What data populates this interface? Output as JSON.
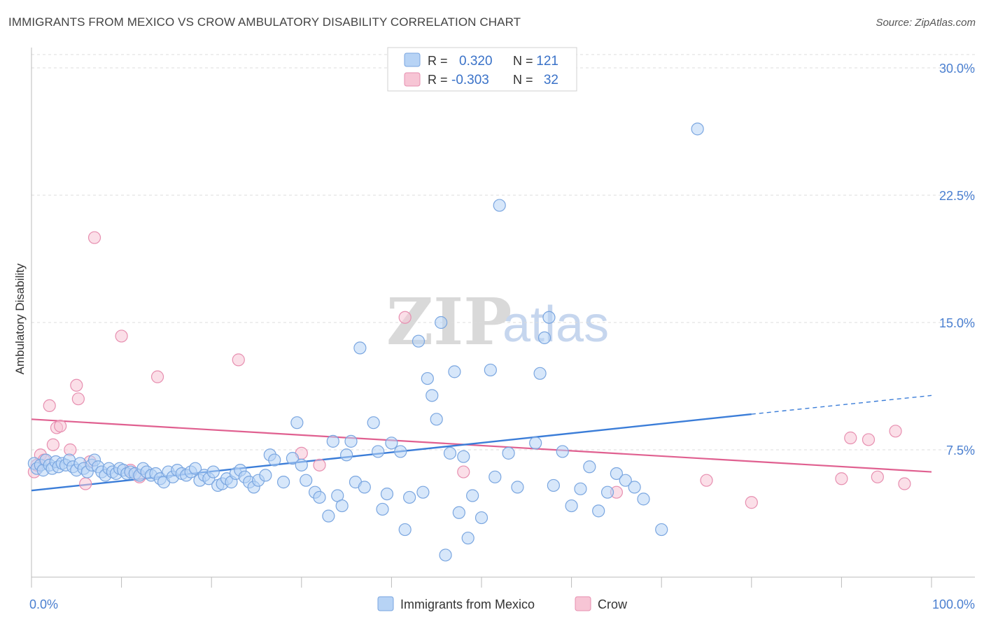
{
  "title": "IMMIGRANTS FROM MEXICO VS CROW AMBULATORY DISABILITY CORRELATION CHART",
  "source": "Source: ZipAtlas.com",
  "watermark": {
    "zip": "ZIP",
    "atlas": "atlas"
  },
  "colors": {
    "blue_fill": "#b7d3f5",
    "blue_stroke": "#7aa6e0",
    "blue_line": "#3b7dd8",
    "pink_fill": "#f7c5d5",
    "pink_stroke": "#e78fb0",
    "pink_line": "#e06090",
    "grid": "#dcdcdc",
    "tick_text": "#4a7fd0"
  },
  "legend_top": {
    "rows": [
      {
        "r_label": "R =",
        "r_value": "0.320",
        "n_label": "N =",
        "n_value": "121"
      },
      {
        "r_label": "R =",
        "r_value": "-0.303",
        "n_label": "N =",
        "n_value": "32"
      }
    ]
  },
  "chart_data": {
    "type": "scatter",
    "title": "IMMIGRANTS FROM MEXICO VS CROW AMBULATORY DISABILITY CORRELATION CHART",
    "xlabel": "",
    "ylabel": "Ambulatory Disability",
    "xlim": [
      0,
      100
    ],
    "ylim": [
      0,
      30
    ],
    "x_tick_labels": [
      "0.0%",
      "100.0%"
    ],
    "y_ticks": [
      7.5,
      15.0,
      22.5,
      30.0
    ],
    "y_tick_labels": [
      "7.5%",
      "15.0%",
      "22.5%",
      "30.0%"
    ],
    "grid": true,
    "legend_position": "bottom",
    "series": [
      {
        "name": "Immigrants from Mexico",
        "points": [
          [
            0.3,
            6.7
          ],
          [
            0.6,
            6.4
          ],
          [
            1.0,
            6.6
          ],
          [
            1.3,
            6.3
          ],
          [
            1.6,
            6.9
          ],
          [
            2.0,
            6.6
          ],
          [
            2.3,
            6.4
          ],
          [
            2.7,
            6.8
          ],
          [
            3.0,
            6.5
          ],
          [
            3.4,
            6.7
          ],
          [
            3.8,
            6.6
          ],
          [
            4.2,
            6.9
          ],
          [
            4.6,
            6.5
          ],
          [
            5.0,
            6.3
          ],
          [
            5.4,
            6.7
          ],
          [
            5.8,
            6.4
          ],
          [
            6.2,
            6.2
          ],
          [
            6.7,
            6.6
          ],
          [
            7.0,
            6.9
          ],
          [
            7.4,
            6.5
          ],
          [
            7.8,
            6.2
          ],
          [
            8.2,
            6.0
          ],
          [
            8.6,
            6.4
          ],
          [
            9.0,
            6.2
          ],
          [
            9.4,
            6.1
          ],
          [
            9.8,
            6.4
          ],
          [
            10.2,
            6.3
          ],
          [
            10.6,
            6.1
          ],
          [
            11.0,
            6.2
          ],
          [
            11.5,
            6.1
          ],
          [
            12.0,
            6.0
          ],
          [
            12.4,
            6.4
          ],
          [
            12.8,
            6.2
          ],
          [
            13.3,
            6.0
          ],
          [
            13.8,
            6.1
          ],
          [
            14.3,
            5.8
          ],
          [
            14.7,
            5.6
          ],
          [
            15.2,
            6.2
          ],
          [
            15.7,
            5.9
          ],
          [
            16.2,
            6.3
          ],
          [
            16.7,
            6.1
          ],
          [
            17.2,
            6.0
          ],
          [
            17.7,
            6.2
          ],
          [
            18.2,
            6.4
          ],
          [
            18.7,
            5.7
          ],
          [
            19.2,
            6.0
          ],
          [
            19.7,
            5.8
          ],
          [
            20.2,
            6.2
          ],
          [
            20.7,
            5.4
          ],
          [
            21.2,
            5.5
          ],
          [
            21.7,
            5.8
          ],
          [
            22.2,
            5.6
          ],
          [
            22.7,
            6.1
          ],
          [
            23.2,
            6.3
          ],
          [
            23.7,
            5.9
          ],
          [
            24.2,
            5.6
          ],
          [
            24.7,
            5.3
          ],
          [
            25.2,
            5.7
          ],
          [
            26.0,
            6.0
          ],
          [
            26.5,
            7.2
          ],
          [
            27.0,
            6.9
          ],
          [
            28.0,
            5.6
          ],
          [
            29.0,
            7.0
          ],
          [
            29.5,
            9.1
          ],
          [
            30.0,
            6.6
          ],
          [
            30.5,
            5.7
          ],
          [
            31.5,
            5.0
          ],
          [
            32.0,
            4.7
          ],
          [
            33.0,
            3.6
          ],
          [
            33.5,
            8.0
          ],
          [
            34.0,
            4.8
          ],
          [
            34.5,
            4.2
          ],
          [
            35.0,
            7.2
          ],
          [
            35.5,
            8.0
          ],
          [
            36.0,
            5.6
          ],
          [
            36.5,
            13.5
          ],
          [
            37.0,
            5.3
          ],
          [
            38.0,
            9.1
          ],
          [
            38.5,
            7.4
          ],
          [
            39.0,
            4.0
          ],
          [
            39.5,
            4.9
          ],
          [
            40.0,
            7.9
          ],
          [
            41.0,
            7.4
          ],
          [
            41.5,
            2.8
          ],
          [
            42.0,
            4.7
          ],
          [
            43.0,
            13.9
          ],
          [
            43.5,
            5.0
          ],
          [
            44.0,
            11.7
          ],
          [
            44.5,
            10.7
          ],
          [
            45.0,
            9.3
          ],
          [
            45.5,
            15.0
          ],
          [
            46.0,
            1.3
          ],
          [
            46.5,
            7.3
          ],
          [
            47.0,
            12.1
          ],
          [
            47.5,
            3.8
          ],
          [
            48.0,
            7.1
          ],
          [
            48.5,
            2.3
          ],
          [
            49.0,
            4.8
          ],
          [
            50.0,
            3.5
          ],
          [
            51.0,
            12.2
          ],
          [
            51.5,
            5.9
          ],
          [
            52.0,
            21.9
          ],
          [
            53.0,
            7.3
          ],
          [
            54.0,
            5.3
          ],
          [
            56.0,
            7.9
          ],
          [
            56.5,
            12.0
          ],
          [
            57.0,
            14.1
          ],
          [
            57.5,
            15.3
          ],
          [
            58.0,
            5.4
          ],
          [
            59.0,
            7.4
          ],
          [
            60.0,
            4.2
          ],
          [
            61.0,
            5.2
          ],
          [
            62.0,
            6.5
          ],
          [
            63.0,
            3.9
          ],
          [
            64.0,
            5.0
          ],
          [
            65.0,
            6.1
          ],
          [
            66.0,
            5.7
          ],
          [
            67.0,
            5.3
          ],
          [
            68.0,
            4.6
          ],
          [
            70.0,
            2.8
          ],
          [
            74.0,
            26.4
          ]
        ],
        "trend": {
          "x0": 0,
          "y0": 5.1,
          "x1": 80,
          "y1": 9.6,
          "dashed_to_x": 100,
          "dashed_to_y": 10.7
        }
      },
      {
        "name": "Crow",
        "points": [
          [
            0.3,
            6.2
          ],
          [
            0.6,
            6.6
          ],
          [
            1.0,
            7.2
          ],
          [
            1.4,
            6.9
          ],
          [
            2.0,
            10.1
          ],
          [
            2.4,
            7.8
          ],
          [
            2.8,
            8.8
          ],
          [
            3.2,
            8.9
          ],
          [
            4.3,
            7.5
          ],
          [
            5.0,
            11.3
          ],
          [
            5.2,
            10.5
          ],
          [
            6.0,
            5.5
          ],
          [
            6.5,
            6.8
          ],
          [
            7.0,
            20.0
          ],
          [
            10.0,
            14.2
          ],
          [
            11.0,
            6.3
          ],
          [
            14.0,
            11.8
          ],
          [
            12.0,
            5.9
          ],
          [
            23.0,
            12.8
          ],
          [
            30.0,
            7.3
          ],
          [
            32.0,
            6.6
          ],
          [
            41.5,
            15.3
          ],
          [
            48.0,
            6.2
          ],
          [
            65.0,
            5.0
          ],
          [
            75.0,
            5.7
          ],
          [
            80.0,
            4.4
          ],
          [
            90.0,
            5.8
          ],
          [
            91.0,
            8.2
          ],
          [
            93.0,
            8.1
          ],
          [
            94.0,
            5.9
          ],
          [
            96.0,
            8.6
          ],
          [
            97.0,
            5.5
          ]
        ],
        "trend": {
          "x0": 0,
          "y0": 9.3,
          "x1": 100,
          "y1": 6.2
        }
      }
    ]
  }
}
